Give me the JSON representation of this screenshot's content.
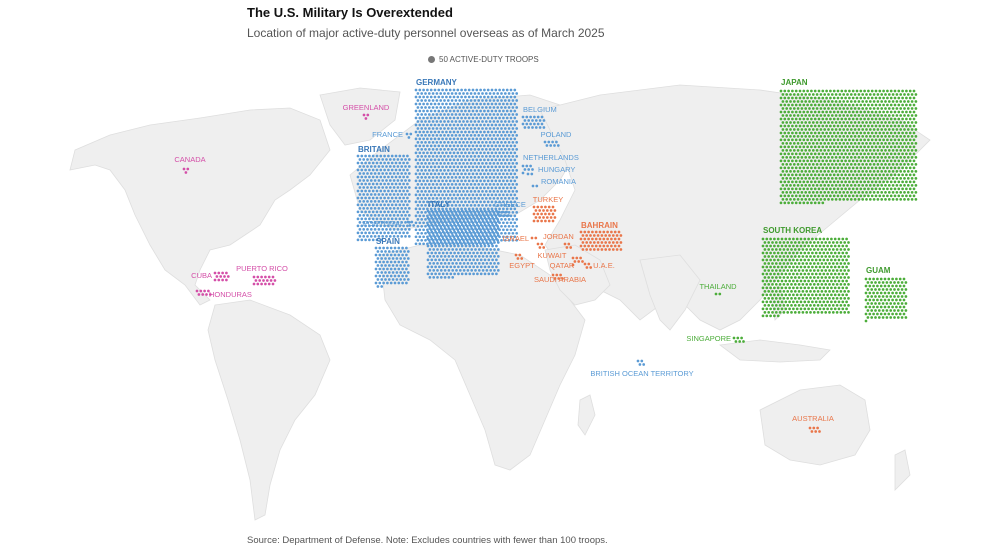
{
  "title": "The U.S. Military Is Overextended",
  "subtitle": "Location of major active-duty personnel overseas as of March 2025",
  "legend": "50 ACTIVE-DUTY TROOPS",
  "source": "Source: Department of Defense. Note: Excludes countries with fewer than 100 troops.",
  "colors": {
    "americas": "#d44fa8",
    "europe": "#5b9bd5",
    "europe_label_bold": "#3a78b8",
    "mideast": "#e9764a",
    "asia": "#4cad3a",
    "land": "#efefef",
    "border": "#dcdcdc"
  },
  "regions": [
    {
      "id": "japan",
      "label": "JAPAN",
      "group": "asia",
      "bold": true,
      "dots": 1164
    },
    {
      "id": "south-korea",
      "label": "SOUTH KOREA",
      "group": "asia",
      "bold": true,
      "dots": 511
    },
    {
      "id": "guam",
      "label": "GUAM",
      "group": "asia",
      "bold": true,
      "dots": 133
    },
    {
      "id": "thailand",
      "label": "THAILAND",
      "group": "asia",
      "bold": false,
      "dots": 2
    },
    {
      "id": "singapore",
      "label": "SINGAPORE",
      "group": "asia",
      "bold": false,
      "dots": 6
    },
    {
      "id": "germany",
      "label": "GERMANY",
      "group": "europe",
      "bold": true,
      "dots": 1209
    },
    {
      "id": "italy",
      "label": "ITALY",
      "group": "europe",
      "bold": true,
      "dots": 368
    },
    {
      "id": "britain",
      "label": "BRITAIN",
      "group": "europe",
      "bold": true,
      "dots": 343
    },
    {
      "id": "spain",
      "label": "SPAIN",
      "group": "europe",
      "bold": true,
      "dots": 101
    },
    {
      "id": "belgium",
      "label": "BELGIUM",
      "group": "europe",
      "bold": false,
      "dots": 24
    },
    {
      "id": "poland",
      "label": "POLAND",
      "group": "europe",
      "bold": false,
      "dots": 8
    },
    {
      "id": "netherlands",
      "label": "NETHERLANDS",
      "group": "europe",
      "bold": false,
      "dots": 7
    },
    {
      "id": "hungary",
      "label": "HUNGARY",
      "group": "europe",
      "bold": false,
      "dots": 2
    },
    {
      "id": "romania",
      "label": "ROMANIA",
      "group": "europe",
      "bold": false,
      "dots": 2
    },
    {
      "id": "france",
      "label": "FRANCE",
      "group": "europe",
      "bold": false,
      "dots": 3
    },
    {
      "id": "portugal",
      "label": "PORTUGAL",
      "group": "europe",
      "bold": false,
      "dots": 4
    },
    {
      "id": "greece",
      "label": "GREECE",
      "group": "europe",
      "bold": false,
      "dots": 6
    },
    {
      "id": "british-ocean-territory",
      "label": "BRITISH OCEAN TERRITORY",
      "group": "europe",
      "bold": false,
      "dots": 4
    },
    {
      "id": "turkey",
      "label": "TURKEY",
      "group": "mideast",
      "bold": false,
      "dots": 30
    },
    {
      "id": "bahrain",
      "label": "BAHRAIN",
      "group": "mideast",
      "bold": true,
      "dots": 66
    },
    {
      "id": "israel",
      "label": "ISRAEL",
      "group": "mideast",
      "bold": false,
      "dots": 2
    },
    {
      "id": "jordan",
      "label": "JORDAN",
      "group": "mideast",
      "bold": false,
      "dots": 4
    },
    {
      "id": "kuwait",
      "label": "KUWAIT",
      "group": "mideast",
      "bold": false,
      "dots": 4
    },
    {
      "id": "egypt",
      "label": "EGYPT",
      "group": "mideast",
      "bold": false,
      "dots": 4
    },
    {
      "id": "qatar",
      "label": "QATAR",
      "group": "mideast",
      "bold": false,
      "dots": 7
    },
    {
      "id": "uae",
      "label": "U.A.E.",
      "group": "mideast",
      "bold": false,
      "dots": 4
    },
    {
      "id": "saudi-arabia",
      "label": "SAUDI ARABIA",
      "group": "mideast",
      "bold": false,
      "dots": 6
    },
    {
      "id": "australia",
      "label": "AUSTRALIA",
      "group": "asia-orange",
      "bold": false,
      "dots": 6
    },
    {
      "id": "greenland",
      "label": "GREENLAND",
      "group": "americas",
      "bold": false,
      "dots": 3
    },
    {
      "id": "canada",
      "label": "CANADA",
      "group": "americas",
      "bold": false,
      "dots": 3
    },
    {
      "id": "cuba",
      "label": "CUBA",
      "group": "americas",
      "bold": false,
      "dots": 12
    },
    {
      "id": "puerto-rico",
      "label": "PUERTO RICO",
      "group": "americas",
      "bold": false,
      "dots": 18
    },
    {
      "id": "honduras",
      "label": "HONDURAS",
      "group": "americas",
      "bold": false,
      "dots": 8
    }
  ]
}
